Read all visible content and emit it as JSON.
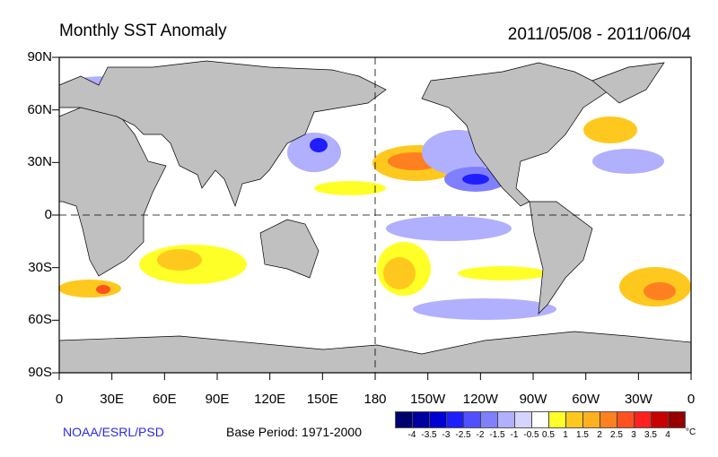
{
  "header": {
    "title": "Monthly SST Anomaly",
    "date_range": "2011/05/08 - 2011/06/04"
  },
  "axes": {
    "lat_labels": [
      "90N",
      "60N",
      "30N",
      "0",
      "30S",
      "60S",
      "90S"
    ],
    "lon_labels": [
      "0",
      "30E",
      "60E",
      "90E",
      "120E",
      "150E",
      "180",
      "150W",
      "120W",
      "90W",
      "60W",
      "30W",
      "0"
    ]
  },
  "footer": {
    "credit": "NOAA/ESRL/PSD",
    "base_period": "Base Period: 1971-2000"
  },
  "colorbar": {
    "colors": [
      "#00006e",
      "#0000a0",
      "#0000d2",
      "#1e1eff",
      "#5050ff",
      "#8080ff",
      "#b0b0ff",
      "#d4d4ff",
      "#ffffff",
      "#ffff28",
      "#ffc81e",
      "#ffb01e",
      "#ff8020",
      "#ff5020",
      "#ff2020",
      "#c80000",
      "#960000"
    ],
    "labels": [
      "-4",
      "-3.5",
      "-3",
      "-2.5",
      "-2",
      "-1.5",
      "-1",
      "-0.5",
      "0.5",
      "1",
      "1.5",
      "2",
      "2.5",
      "3",
      "3.5",
      "4"
    ],
    "unit": "°C"
  }
}
